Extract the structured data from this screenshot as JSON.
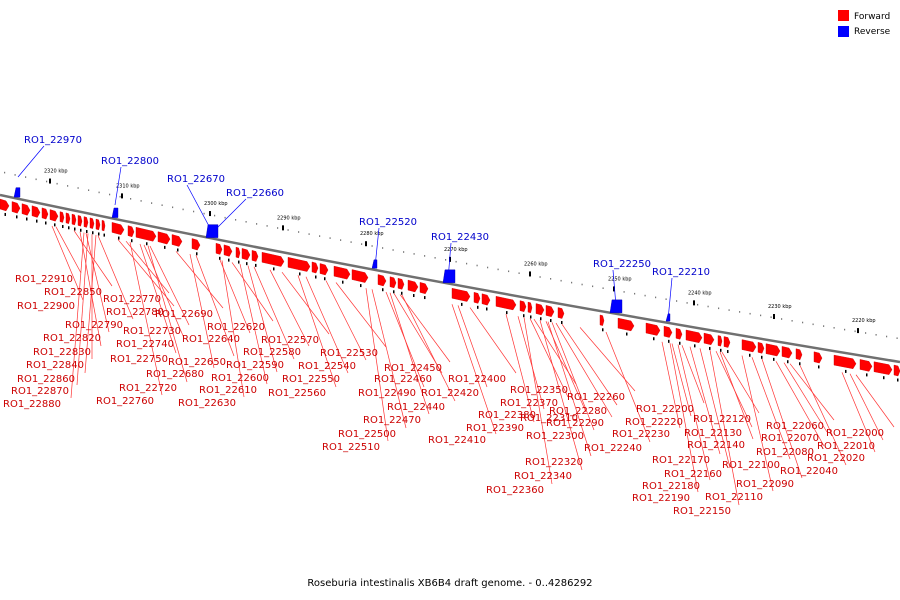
{
  "caption": "Roseburia intestinalis XB6B4 draft genome. - 0..4286292",
  "legend": [
    {
      "label": "Forward",
      "color": "#ff0000"
    },
    {
      "label": "Reverse",
      "color": "#0000ff"
    }
  ],
  "scale_ticks": [
    "2320 kbp",
    "2310 kbp",
    "2300 kbp",
    "2290 kbp",
    "2280 kbp",
    "2270 kbp",
    "2260 kbp",
    "2250 kbp",
    "2240 kbp",
    "2230 kbp",
    "2220 kbp"
  ],
  "reverse_genes": [
    "RO1_22970",
    "RO1_22800",
    "RO1_22670",
    "RO1_22660",
    "RO1_22520",
    "RO1_22430",
    "RO1_22250",
    "RO1_22210"
  ],
  "forward_genes": [
    "RO1_22910",
    "RO1_22850",
    "RO1_22900",
    "RO1_22790",
    "RO1_22820",
    "RO1_22830",
    "RO1_22840",
    "RO1_22860",
    "RO1_22870",
    "RO1_22880",
    "RO1_22770",
    "RO1_22780",
    "RO1_22730",
    "RO1_22740",
    "RO1_22750",
    "RO1_22720",
    "RO1_22760",
    "RO1_22690",
    "RO1_22620",
    "RO1_22640",
    "RO1_22650",
    "RO1_22680",
    "RO1_22600",
    "RO1_22610",
    "RO1_22630",
    "RO1_22570",
    "RO1_22580",
    "RO1_22590",
    "RO1_22550",
    "RO1_22560",
    "RO1_22530",
    "RO1_22540",
    "RO1_22450",
    "RO1_22460",
    "RO1_22490",
    "RO1_22440",
    "RO1_22470",
    "RO1_22500",
    "RO1_22510",
    "RO1_22400",
    "RO1_22420",
    "RO1_22410",
    "RO1_22350",
    "RO1_22370",
    "RO1_22380",
    "RO1_22390",
    "RO1_22290",
    "RO1_22280",
    "RO1_22310",
    "RO1_22300",
    "RO1_22320",
    "RO1_22340",
    "RO1_22360",
    "RO1_22260",
    "RO1_22240",
    "RO1_22200",
    "RO1_22220",
    "RO1_22230",
    "RO1_22120",
    "RO1_22130",
    "RO1_22140",
    "RO1_22170",
    "RO1_22160",
    "RO1_22180",
    "RO1_22190",
    "RO1_22110",
    "RO1_22150",
    "RO1_22100",
    "RO1_22090",
    "RO1_22060",
    "RO1_22070",
    "RO1_22080",
    "RO1_22040",
    "RO1_22000",
    "RO1_22010",
    "RO1_22020"
  ]
}
